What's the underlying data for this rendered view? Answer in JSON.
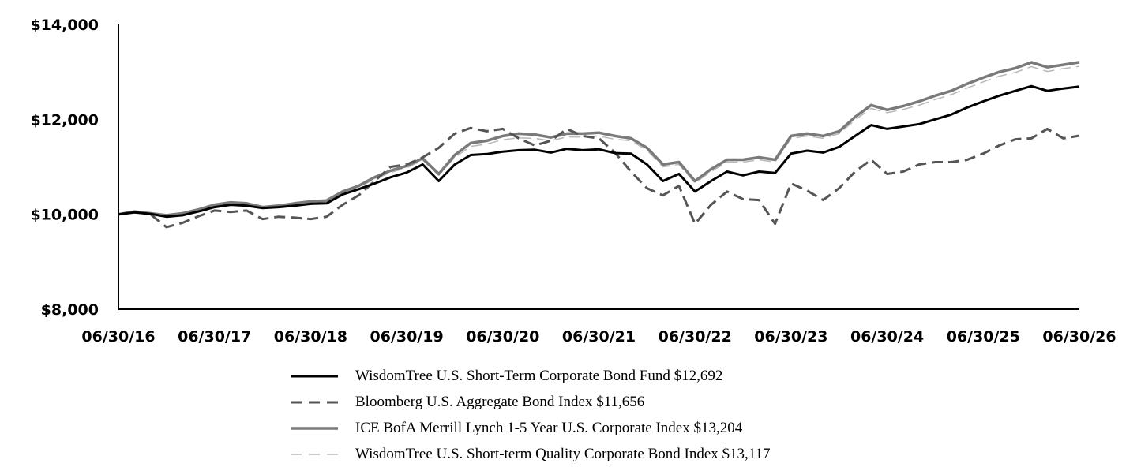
{
  "chart_data": {
    "type": "line",
    "title": "",
    "xlabel": "",
    "ylabel": "",
    "ylim": [
      8000,
      14000
    ],
    "yticks": [
      "$8,000",
      "$10,000",
      "$12,000",
      "$14,000"
    ],
    "ytick_values": [
      8000,
      10000,
      12000,
      14000
    ],
    "xticks": [
      "06/30/16",
      "06/30/17",
      "06/30/18",
      "06/30/19",
      "06/30/20",
      "06/30/21",
      "06/30/22",
      "06/30/23",
      "06/30/24",
      "06/30/25",
      "06/30/26"
    ],
    "grid": false,
    "legend_position": "bottom-center",
    "series": [
      {
        "name": "WisdomTree U.S. Short-Term Corporate Bond Fund $12,692",
        "color": "#000000",
        "style": "solid",
        "values": [
          10000,
          10040,
          10010,
          9950,
          9980,
          10060,
          10150,
          10200,
          10180,
          10130,
          10150,
          10180,
          10220,
          10230,
          10420,
          10530,
          10650,
          10780,
          10880,
          11050,
          10700,
          11050,
          11250,
          11270,
          11320,
          11350,
          11360,
          11300,
          11380,
          11350,
          11370,
          11290,
          11280,
          11050,
          10700,
          10850,
          10480,
          10700,
          10900,
          10820,
          10900,
          10870,
          11280,
          11340,
          11300,
          11420,
          11650,
          11880,
          11800,
          11850,
          11900,
          12000,
          12100,
          12250,
          12380,
          12500,
          12600,
          12700,
          12600,
          12650,
          12692
        ]
      },
      {
        "name": "Bloomberg U.S. Aggregate Bond Index $11,656",
        "color": "#555555",
        "style": "dash",
        "values": [
          10000,
          10050,
          10000,
          9730,
          9820,
          9960,
          10080,
          10050,
          10080,
          9900,
          9950,
          9930,
          9900,
          9950,
          10200,
          10400,
          10700,
          11000,
          11050,
          11200,
          11400,
          11700,
          11820,
          11750,
          11800,
          11600,
          11450,
          11550,
          11800,
          11650,
          11600,
          11300,
          10900,
          10550,
          10400,
          10600,
          9800,
          10200,
          10480,
          10320,
          10300,
          9800,
          10650,
          10500,
          10300,
          10550,
          10900,
          11150,
          10850,
          10900,
          11050,
          11100,
          11100,
          11150,
          11280,
          11450,
          11580,
          11600,
          11800,
          11600,
          11656
        ]
      },
      {
        "name": "ICE BofA Merrill Lynch 1-5 Year U.S. Corporate Index $13,204",
        "color": "#7a7a7a",
        "style": "solid",
        "values": [
          10000,
          10060,
          10020,
          9980,
          10020,
          10100,
          10200,
          10250,
          10230,
          10150,
          10180,
          10230,
          10270,
          10290,
          10480,
          10600,
          10780,
          10920,
          11020,
          11180,
          10850,
          11250,
          11500,
          11550,
          11650,
          11700,
          11680,
          11620,
          11700,
          11700,
          11720,
          11650,
          11600,
          11400,
          11050,
          11100,
          10700,
          10950,
          11150,
          11150,
          11200,
          11150,
          11650,
          11700,
          11650,
          11750,
          12050,
          12300,
          12200,
          12280,
          12380,
          12500,
          12600,
          12750,
          12880,
          13000,
          13080,
          13200,
          13100,
          13150,
          13204
        ]
      },
      {
        "name": "WisdomTree U.S. Short-term Quality Corporate Bond Index $13,117",
        "color": "#b8b8b8",
        "style": "dash",
        "values": [
          10000,
          10050,
          10010,
          9970,
          10010,
          10090,
          10180,
          10230,
          10210,
          10140,
          10170,
          10220,
          10260,
          10280,
          10450,
          10570,
          10740,
          10880,
          10980,
          11140,
          10820,
          11200,
          11430,
          11480,
          11570,
          11610,
          11600,
          11550,
          11630,
          11630,
          11650,
          11580,
          11550,
          11350,
          11000,
          11050,
          10660,
          10900,
          11100,
          11100,
          11150,
          11100,
          11600,
          11650,
          11600,
          11700,
          11990,
          12230,
          12140,
          12210,
          12300,
          12420,
          12520,
          12660,
          12790,
          12910,
          12990,
          13110,
          13010,
          13070,
          13117
        ]
      }
    ]
  }
}
